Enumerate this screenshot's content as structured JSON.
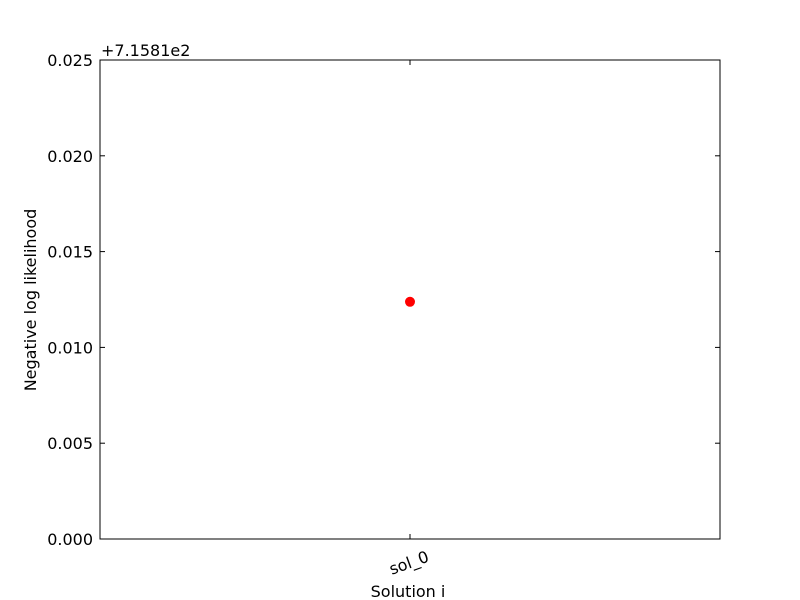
{
  "chart_data": {
    "type": "scatter",
    "title": "",
    "xlabel": "Solution i",
    "ylabel": "Negative log likelihood",
    "y_offset_label": "+7.1581e2",
    "categories": [
      "sol_0"
    ],
    "series": [
      {
        "values": [
          0.01238
        ],
        "color": "#ff0000"
      }
    ],
    "ylim": [
      0.0,
      0.025
    ],
    "yticks": [
      0.0,
      0.005,
      0.01,
      0.015,
      0.02,
      0.025
    ],
    "ytick_labels": [
      "0.000",
      "0.005",
      "0.010",
      "0.015",
      "0.020",
      "0.025"
    ],
    "grid": false,
    "legend": "none"
  }
}
